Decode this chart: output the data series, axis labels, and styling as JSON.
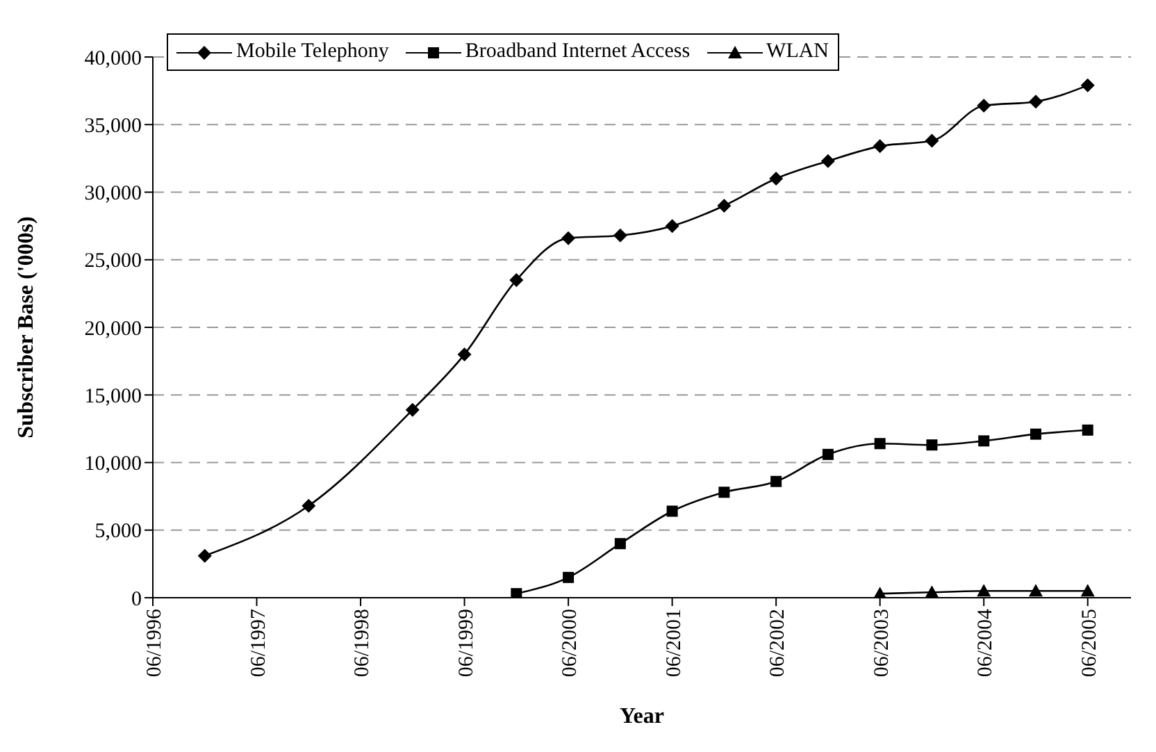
{
  "chart_data": {
    "type": "line",
    "xlabel": "Year",
    "ylabel": "Subscriber Base ('000s)",
    "xlim": [
      "1996-06",
      "2005-11"
    ],
    "xticks": [
      {
        "value": "1996-06",
        "label": "06/1996"
      },
      {
        "value": "1997-06",
        "label": "06/1997"
      },
      {
        "value": "1998-06",
        "label": "06/1998"
      },
      {
        "value": "1999-06",
        "label": "06/1999"
      },
      {
        "value": "2000-06",
        "label": "06/2000"
      },
      {
        "value": "2001-06",
        "label": "06/2001"
      },
      {
        "value": "2002-06",
        "label": "06/2002"
      },
      {
        "value": "2003-06",
        "label": "06/2003"
      },
      {
        "value": "2004-06",
        "label": "06/2004"
      },
      {
        "value": "2005-06",
        "label": "06/2005"
      }
    ],
    "ylim": [
      0,
      40000
    ],
    "yticks": [
      0,
      {
        "value": 5000,
        "label": "5,000"
      },
      {
        "value": 10000,
        "label": "10,000"
      },
      {
        "value": 15000,
        "label": "15,000"
      },
      {
        "value": 20000,
        "label": "20,000"
      },
      {
        "value": 25000,
        "label": "25,000"
      },
      {
        "value": 30000,
        "label": "30,000"
      },
      {
        "value": 35000,
        "label": "35,000"
      },
      {
        "value": 40000,
        "label": "40,000"
      }
    ],
    "grid": "y",
    "legend": "top left",
    "series": [
      {
        "name": "Mobile Telephony",
        "color": "#000000",
        "marker": "diamond",
        "x": [
          "1996-12",
          "1997-12",
          "1998-12",
          "1999-06",
          "1999-12",
          "2000-06",
          "2000-12",
          "2001-06",
          "2001-12",
          "2002-06",
          "2002-12",
          "2003-06",
          "2003-12",
          "2004-06",
          "2004-12",
          "2005-06"
        ],
        "values": [
          3100,
          6800,
          13900,
          18000,
          23500,
          26600,
          26800,
          27500,
          29000,
          31000,
          32300,
          33400,
          33800,
          36400,
          36700,
          37900
        ]
      },
      {
        "name": "Broadband Internet Access",
        "color": "#000000",
        "marker": "square",
        "x": [
          "1999-12",
          "2000-06",
          "2000-12",
          "2001-06",
          "2001-12",
          "2002-06",
          "2002-12",
          "2003-06",
          "2003-12",
          "2004-06",
          "2004-12",
          "2005-06"
        ],
        "values": [
          300,
          1500,
          4000,
          6400,
          7800,
          8600,
          10600,
          11400,
          11300,
          11600,
          12100,
          12400
        ]
      },
      {
        "name": "WLAN",
        "color": "#000000",
        "marker": "triangle",
        "x": [
          "2003-06",
          "2003-12",
          "2004-06",
          "2004-12",
          "2005-06"
        ],
        "values": [
          300,
          400,
          500,
          500,
          500
        ]
      }
    ]
  }
}
